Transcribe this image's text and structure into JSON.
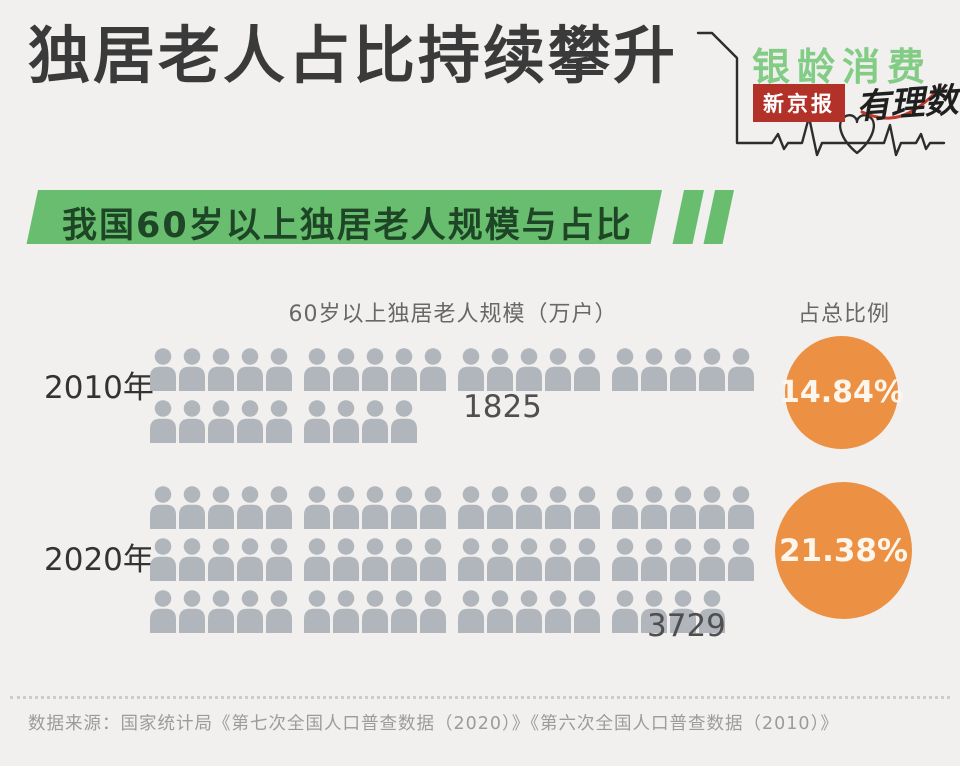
{
  "page": {
    "background": "#f1f0ee"
  },
  "header": {
    "title": "独居老人占比持续攀升",
    "logo": {
      "brand": "银龄消费",
      "brand_color": "#82cc86",
      "badge": "新京报",
      "badge_bg": "#b23229",
      "script": "有理数",
      "heartbeat_icon": "ecg-heartbeat-line"
    }
  },
  "banner": {
    "text": "我国60岁以上独居老人规模与占比",
    "bg_color": "#68be6e",
    "text_color": "#1d4526"
  },
  "chart_data": {
    "type": "pictogram",
    "title": "我国60岁以上独居老人规模与占比",
    "unit_label": "60岁以上独居老人规模（万户）",
    "ratio_label": "占总比例",
    "icon_unit": "person-icon",
    "icon_color": "#b0b6bb",
    "circle_color": "#ec9143",
    "categories": [
      "2010年",
      "2020年"
    ],
    "series": [
      {
        "name": "独居老人规模(万户)",
        "values": [
          1825,
          3729
        ]
      },
      {
        "name": "占总比例",
        "values": [
          "14.84%",
          "21.38%"
        ]
      }
    ],
    "rows": [
      {
        "year": "2010年",
        "value": 1825,
        "value_label": "1825",
        "percent_label": "14.84%",
        "icon_rows": [
          [
            5,
            5,
            5,
            5
          ],
          [
            5,
            4
          ]
        ]
      },
      {
        "year": "2020年",
        "value": 3729,
        "value_label": "3729",
        "percent_label": "21.38%",
        "icon_rows": [
          [
            5,
            5,
            5,
            5
          ],
          [
            5,
            5,
            5,
            5
          ],
          [
            5,
            5,
            5,
            4
          ]
        ]
      }
    ]
  },
  "footer": {
    "source": "数据来源：国家统计局《第七次全国人口普查数据（2020）》《第六次全国人口普查数据（2010）》"
  }
}
